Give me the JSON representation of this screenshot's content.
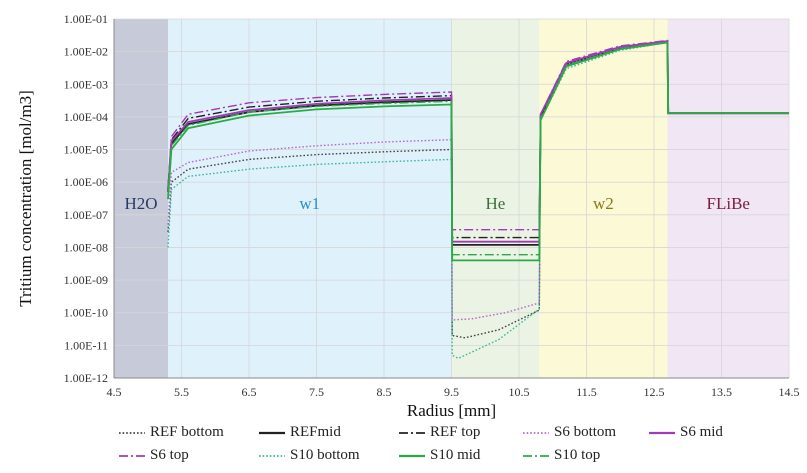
{
  "chart_data": {
    "type": "line",
    "xlabel": "Radius [mm]",
    "ylabel": "Tritium concentration [mol/m3]",
    "xlim": [
      4.5,
      14.5
    ],
    "ylim": [
      1e-12,
      0.1
    ],
    "yscale": "log",
    "grid": true,
    "legend_position": "bottom",
    "x_ticks": [
      "4.5",
      "5.5",
      "6.5",
      "7.5",
      "8.5",
      "9.5",
      "10.5",
      "11.5",
      "12.5",
      "13.5",
      "14.5"
    ],
    "y_ticks": [
      "1.00E-01",
      "1.00E-02",
      "1.00E-03",
      "1.00E-04",
      "1.00E-05",
      "1.00E-06",
      "1.00E-07",
      "1.00E-08",
      "1.00E-09",
      "1.00E-10",
      "1.00E-11",
      "1.00E-12"
    ],
    "regions": [
      {
        "label": "H2O",
        "x0": 4.5,
        "x1": 5.3,
        "fill": "#c7cbd9",
        "text_color": "#2a3a66"
      },
      {
        "label": "w1",
        "x0": 5.3,
        "x1": 9.5,
        "fill": "#dff1fb",
        "text_color": "#2d8fcc"
      },
      {
        "label": "He",
        "x0": 9.5,
        "x1": 10.8,
        "fill": "#eaf3e4",
        "text_color": "#3c6e3c"
      },
      {
        "label": "w2",
        "x0": 10.8,
        "x1": 12.7,
        "fill": "#fbf9d6",
        "text_color": "#8a7a1a"
      },
      {
        "label": "FLiBe",
        "x0": 12.7,
        "x1": 14.5,
        "fill": "#f1e6f3",
        "text_color": "#7a1e3e"
      }
    ],
    "series": [
      {
        "name": "REF bottom",
        "color": "#444444",
        "dash": "dot",
        "points": [
          [
            5.3,
            3e-08
          ],
          [
            5.35,
            1e-06
          ],
          [
            5.6,
            2.5e-06
          ],
          [
            6.5,
            5e-06
          ],
          [
            7.5,
            7e-06
          ],
          [
            8.5,
            8.5e-06
          ],
          [
            9.5,
            1e-05
          ],
          [
            9.51,
            2e-11
          ],
          [
            9.7,
            1.7e-11
          ],
          [
            10.2,
            3e-11
          ],
          [
            10.8,
            1.2e-10
          ],
          [
            10.82,
            0.0001
          ],
          [
            11.2,
            0.0035
          ],
          [
            12.0,
            0.012
          ],
          [
            12.7,
            0.02
          ],
          [
            12.71,
            0.00013
          ],
          [
            14.5,
            0.00013
          ]
        ]
      },
      {
        "name": "REFmid",
        "color": "#222222",
        "dash": "solid",
        "points": [
          [
            5.3,
            5e-07
          ],
          [
            5.35,
            1.5e-05
          ],
          [
            5.6,
            6e-05
          ],
          [
            6.5,
            0.00014
          ],
          [
            7.5,
            0.00022
          ],
          [
            8.5,
            0.00028
          ],
          [
            9.5,
            0.00033
          ],
          [
            9.51,
            1.2e-08
          ],
          [
            10.8,
            1.2e-08
          ],
          [
            10.82,
            0.0001
          ],
          [
            11.2,
            0.004
          ],
          [
            12.0,
            0.013
          ],
          [
            12.7,
            0.02
          ],
          [
            12.71,
            0.00013
          ],
          [
            14.5,
            0.00013
          ]
        ]
      },
      {
        "name": "REF top",
        "color": "#222222",
        "dash": "dashdot",
        "points": [
          [
            5.3,
            6e-07
          ],
          [
            5.35,
            2e-05
          ],
          [
            5.6,
            9e-05
          ],
          [
            6.5,
            0.0002
          ],
          [
            7.5,
            0.0003
          ],
          [
            8.5,
            0.00038
          ],
          [
            9.5,
            0.00045
          ],
          [
            9.51,
            2e-08
          ],
          [
            10.8,
            2e-08
          ],
          [
            10.82,
            0.0001
          ],
          [
            11.2,
            0.0045
          ],
          [
            12.0,
            0.014
          ],
          [
            12.7,
            0.021
          ],
          [
            12.71,
            0.00013
          ],
          [
            14.5,
            0.00013
          ]
        ]
      },
      {
        "name": "S6 bottom",
        "color": "#b86bc8",
        "dash": "dot",
        "points": [
          [
            5.3,
            5e-08
          ],
          [
            5.35,
            2e-06
          ],
          [
            5.6,
            4e-06
          ],
          [
            6.5,
            9e-06
          ],
          [
            7.5,
            1.3e-05
          ],
          [
            8.5,
            1.7e-05
          ],
          [
            9.5,
            2e-05
          ],
          [
            9.51,
            6e-11
          ],
          [
            9.8,
            6.5e-11
          ],
          [
            10.3,
            1e-10
          ],
          [
            10.8,
            2e-10
          ],
          [
            10.82,
            0.00012
          ],
          [
            11.2,
            0.004
          ],
          [
            12.0,
            0.013
          ],
          [
            12.7,
            0.02
          ],
          [
            12.71,
            0.00013
          ],
          [
            14.5,
            0.00013
          ]
        ]
      },
      {
        "name": "S6 mid",
        "color": "#a23ab8",
        "dash": "solid",
        "points": [
          [
            5.3,
            5e-07
          ],
          [
            5.35,
            1.8e-05
          ],
          [
            5.6,
            7e-05
          ],
          [
            6.5,
            0.00016
          ],
          [
            7.5,
            0.00025
          ],
          [
            8.5,
            0.00032
          ],
          [
            9.5,
            0.00038
          ],
          [
            9.51,
            1.5e-08
          ],
          [
            10.8,
            1.5e-08
          ],
          [
            10.82,
            0.00012
          ],
          [
            11.2,
            0.0045
          ],
          [
            12.0,
            0.014
          ],
          [
            12.7,
            0.021
          ],
          [
            12.71,
            0.00013
          ],
          [
            14.5,
            0.00013
          ]
        ]
      },
      {
        "name": "S6 top",
        "color": "#a23ab8",
        "dash": "dashdot",
        "points": [
          [
            5.3,
            7e-07
          ],
          [
            5.35,
            2.5e-05
          ],
          [
            5.6,
            0.00012
          ],
          [
            6.5,
            0.00027
          ],
          [
            7.5,
            0.00039
          ],
          [
            8.5,
            0.00049
          ],
          [
            9.5,
            0.00058
          ],
          [
            9.51,
            3.5e-08
          ],
          [
            10.8,
            3.5e-08
          ],
          [
            10.82,
            0.00012
          ],
          [
            11.2,
            0.005
          ],
          [
            12.0,
            0.015
          ],
          [
            12.7,
            0.022
          ],
          [
            12.71,
            0.00013
          ],
          [
            14.5,
            0.00013
          ]
        ]
      },
      {
        "name": "S10 bottom",
        "color": "#3cb89a",
        "dash": "dot",
        "points": [
          [
            5.3,
            1e-08
          ],
          [
            5.35,
            6e-07
          ],
          [
            5.6,
            1.5e-06
          ],
          [
            6.5,
            2.5e-06
          ],
          [
            7.5,
            3.5e-06
          ],
          [
            8.5,
            4.2e-06
          ],
          [
            9.5,
            5e-06
          ],
          [
            9.51,
            5e-12
          ],
          [
            9.6,
            4e-12
          ],
          [
            10.2,
            1.5e-11
          ],
          [
            10.8,
            1.3e-10
          ],
          [
            10.82,
            8e-05
          ],
          [
            11.2,
            0.003
          ],
          [
            12.0,
            0.011
          ],
          [
            12.7,
            0.019
          ],
          [
            12.71,
            0.00013
          ],
          [
            14.5,
            0.00013
          ]
        ]
      },
      {
        "name": "S10 mid",
        "color": "#2bab45",
        "dash": "solid",
        "points": [
          [
            5.3,
            3e-07
          ],
          [
            5.35,
            1e-05
          ],
          [
            5.6,
            4.5e-05
          ],
          [
            6.5,
            0.00011
          ],
          [
            7.5,
            0.00017
          ],
          [
            8.5,
            0.00021
          ],
          [
            9.5,
            0.00024
          ],
          [
            9.51,
            4e-09
          ],
          [
            10.8,
            4e-09
          ],
          [
            10.82,
            8e-05
          ],
          [
            11.2,
            0.0035
          ],
          [
            12.0,
            0.012
          ],
          [
            12.7,
            0.019
          ],
          [
            12.71,
            0.00013
          ],
          [
            14.5,
            0.00013
          ]
        ]
      },
      {
        "name": "S10 top",
        "color": "#2bab45",
        "dash": "dashdot",
        "points": [
          [
            5.3,
            4e-07
          ],
          [
            5.35,
            1.3e-05
          ],
          [
            5.6,
            5.5e-05
          ],
          [
            6.5,
            0.00014
          ],
          [
            7.5,
            0.00021
          ],
          [
            8.5,
            0.00026
          ],
          [
            9.5,
            0.0003
          ],
          [
            9.51,
            6e-09
          ],
          [
            10.8,
            6e-09
          ],
          [
            10.82,
            9e-05
          ],
          [
            11.2,
            0.0038
          ],
          [
            12.0,
            0.0125
          ],
          [
            12.7,
            0.0195
          ],
          [
            12.71,
            0.00013
          ],
          [
            14.5,
            0.00013
          ]
        ]
      }
    ]
  }
}
